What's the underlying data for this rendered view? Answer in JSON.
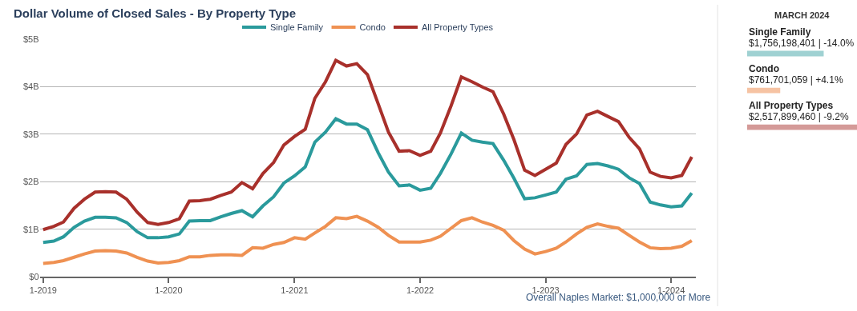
{
  "chart_data": [
    {
      "type": "line",
      "title": "Dollar Volume of Closed Sales - By Property Type",
      "x": [
        "2019-01",
        "2019-02",
        "2019-03",
        "2019-04",
        "2019-05",
        "2019-06",
        "2019-07",
        "2019-08",
        "2019-09",
        "2019-10",
        "2019-11",
        "2019-12",
        "2020-01",
        "2020-02",
        "2020-03",
        "2020-04",
        "2020-05",
        "2020-06",
        "2020-07",
        "2020-08",
        "2020-09",
        "2020-10",
        "2020-11",
        "2020-12",
        "2021-01",
        "2021-02",
        "2021-03",
        "2021-04",
        "2021-05",
        "2021-06",
        "2021-07",
        "2021-08",
        "2021-09",
        "2021-10",
        "2021-11",
        "2021-12",
        "2022-01",
        "2022-02",
        "2022-03",
        "2022-04",
        "2022-05",
        "2022-06",
        "2022-07",
        "2022-08",
        "2022-09",
        "2022-10",
        "2022-11",
        "2022-12",
        "2023-01",
        "2023-02",
        "2023-03",
        "2023-04",
        "2023-05",
        "2023-06",
        "2023-07",
        "2023-08",
        "2023-09",
        "2023-10",
        "2023-11",
        "2023-12",
        "2024-01",
        "2024-02",
        "2024-03"
      ],
      "series": [
        {
          "name": "Single Family",
          "color": "#2a9a9c",
          "values": [
            0.72,
            0.75,
            0.84,
            1.04,
            1.17,
            1.25,
            1.25,
            1.24,
            1.14,
            0.95,
            0.82,
            0.82,
            0.84,
            0.9,
            1.17,
            1.18,
            1.18,
            1.26,
            1.33,
            1.39,
            1.26,
            1.49,
            1.68,
            1.97,
            2.12,
            2.31,
            2.83,
            3.04,
            3.32,
            3.21,
            3.21,
            3.09,
            2.61,
            2.2,
            1.91,
            1.93,
            1.82,
            1.86,
            2.17,
            2.58,
            3.02,
            2.87,
            2.83,
            2.8,
            2.45,
            2.07,
            1.64,
            1.66,
            1.72,
            1.78,
            2.05,
            2.12,
            2.36,
            2.38,
            2.33,
            2.26,
            2.08,
            1.96,
            1.57,
            1.51,
            1.47,
            1.49,
            1.76
          ]
        },
        {
          "name": "Condo",
          "color": "#ef9152",
          "values": [
            0.28,
            0.3,
            0.34,
            0.41,
            0.48,
            0.54,
            0.55,
            0.54,
            0.5,
            0.41,
            0.33,
            0.29,
            0.3,
            0.34,
            0.42,
            0.42,
            0.45,
            0.46,
            0.46,
            0.45,
            0.61,
            0.6,
            0.68,
            0.72,
            0.82,
            0.79,
            0.92,
            1.06,
            1.24,
            1.22,
            1.27,
            1.17,
            1.04,
            0.87,
            0.73,
            0.73,
            0.73,
            0.77,
            0.85,
            1.02,
            1.18,
            1.24,
            1.15,
            1.08,
            0.98,
            0.76,
            0.58,
            0.48,
            0.53,
            0.6,
            0.73,
            0.9,
            1.04,
            1.11,
            1.06,
            1.02,
            0.87,
            0.73,
            0.61,
            0.59,
            0.6,
            0.64,
            0.76
          ]
        },
        {
          "name": "All Property Types",
          "color": "#a8302b",
          "values": [
            0.99,
            1.06,
            1.15,
            1.44,
            1.63,
            1.78,
            1.79,
            1.78,
            1.63,
            1.36,
            1.14,
            1.1,
            1.14,
            1.22,
            1.59,
            1.6,
            1.63,
            1.71,
            1.78,
            1.98,
            1.85,
            2.17,
            2.4,
            2.77,
            2.95,
            3.1,
            3.75,
            4.1,
            4.55,
            4.43,
            4.48,
            4.25,
            3.64,
            3.04,
            2.64,
            2.65,
            2.55,
            2.64,
            3.02,
            3.59,
            4.2,
            4.1,
            3.99,
            3.89,
            3.42,
            2.88,
            2.24,
            2.13,
            2.26,
            2.39,
            2.78,
            3.0,
            3.4,
            3.48,
            3.37,
            3.26,
            2.93,
            2.69,
            2.2,
            2.11,
            2.08,
            2.13,
            2.52
          ]
        }
      ],
      "xlim": [
        "2018-12-22",
        "2024-03-14"
      ],
      "xticks": [
        {
          "value": "2019-01",
          "label": "1-2019"
        },
        {
          "value": "2020-01",
          "label": "1-2020"
        },
        {
          "value": "2021-01",
          "label": "1-2021"
        },
        {
          "value": "2022-01",
          "label": "1-2022"
        },
        {
          "value": "2023-01",
          "label": "1-2023"
        },
        {
          "value": "2024-01",
          "label": "1-2024"
        }
      ],
      "ylim": [
        0,
        5
      ],
      "yticks": [
        {
          "value": 0,
          "label": "$0"
        },
        {
          "value": 1,
          "label": "$1B"
        },
        {
          "value": 2,
          "label": "$2B"
        },
        {
          "value": 3,
          "label": "$3B"
        },
        {
          "value": 4,
          "label": "$4B"
        },
        {
          "value": 5,
          "label": "$5B"
        }
      ],
      "grid": "y",
      "legend": "top",
      "line_style": "solid",
      "marker": "none",
      "annotations": [
        "Overall Naples Market: $1,000,000 or More"
      ]
    },
    {
      "type": "bar",
      "orientation": "horizontal",
      "title": "MARCH 2024",
      "categories": [
        "Single Family",
        "Condo",
        "All Property Types"
      ],
      "values": [
        1756198401,
        761701059,
        2517899460
      ],
      "colors": [
        "#9fd1d2",
        "#f6c3a3",
        "#d49a98"
      ],
      "value_labels": [
        "$1,756,198,401 | -14.0%",
        "$761,701,059 | +4.1%",
        "$2,517,899,460 | -9.2%"
      ]
    }
  ]
}
